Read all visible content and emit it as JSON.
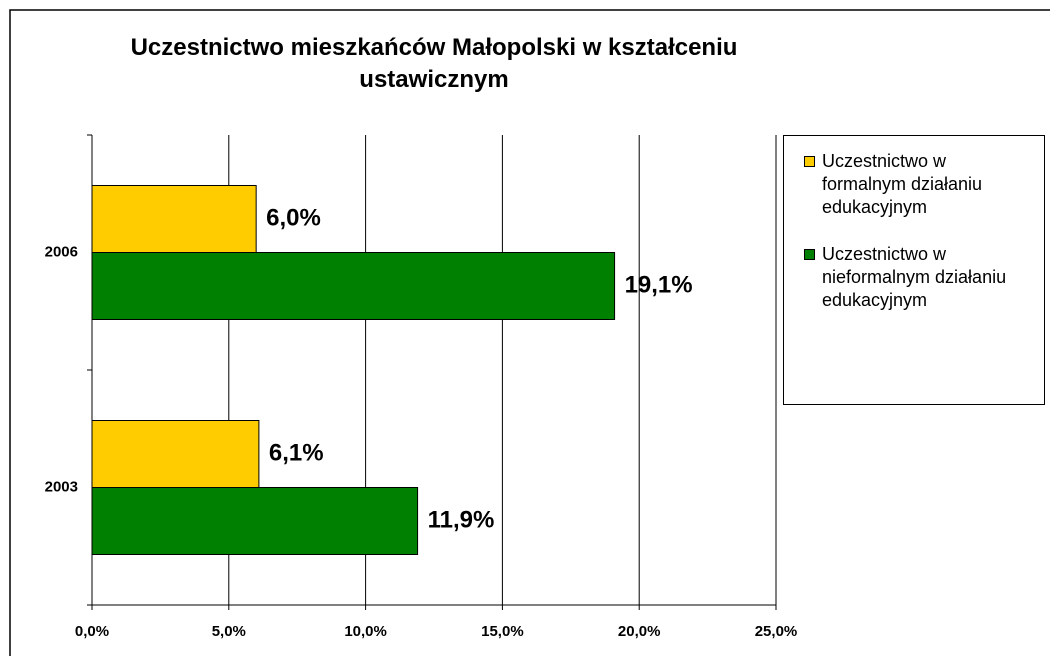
{
  "chart_data": {
    "type": "hbar",
    "title": "Uczestnictwo mieszkańców Małopolski w kształceniu ustawicznym",
    "categories": [
      "2003",
      "2006"
    ],
    "series": [
      {
        "name": "Uczestnictwo w formalnym działaniu edukacyjnym",
        "color": "#ffcc00",
        "values": [
          6.1,
          6.0
        ],
        "value_labels": [
          "6,1%",
          "6,0%"
        ]
      },
      {
        "name": "Uczestnictwo w nieformalnym działaniu edukacyjnym",
        "color": "#008000",
        "values": [
          11.9,
          19.1
        ],
        "value_labels": [
          "11,9%",
          "19,1%"
        ]
      }
    ],
    "xlim": [
      0,
      25
    ],
    "xticks": [
      {
        "value": 0,
        "label": "0,0%"
      },
      {
        "value": 5,
        "label": "5,0%"
      },
      {
        "value": 10,
        "label": "10,0%"
      },
      {
        "value": 15,
        "label": "15,0%"
      },
      {
        "value": 20,
        "label": "20,0%"
      },
      {
        "value": 25,
        "label": "25,0%"
      }
    ],
    "grid": true,
    "legend": "right"
  }
}
